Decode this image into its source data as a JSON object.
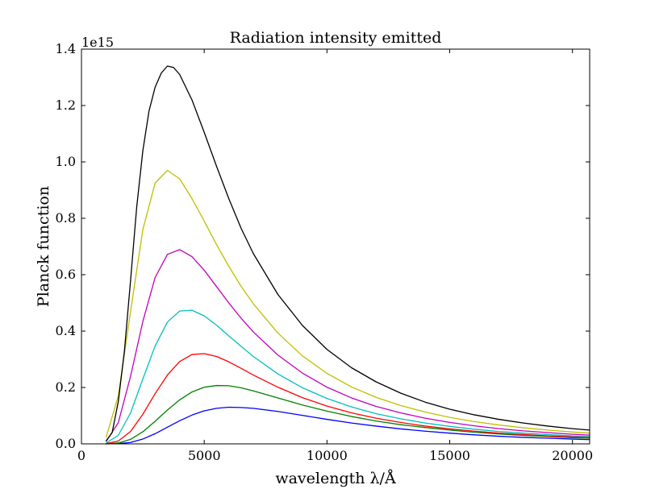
{
  "chart_data": {
    "type": "line",
    "title": "Radiation intensity emitted",
    "xlabel": "wavelength λ/Å",
    "ylabel": "Planck function",
    "y_offset_label": "1e15",
    "xlim": [
      0,
      20700
    ],
    "ylim": [
      0,
      1.4
    ],
    "x_ticks": [
      0,
      5000,
      10000,
      15000,
      20000
    ],
    "x_tick_labels": [
      "0",
      "5000",
      "10000",
      "15000",
      "20000"
    ],
    "y_ticks": [
      0.0,
      0.2,
      0.4,
      0.6,
      0.8,
      1.0,
      1.2,
      1.4
    ],
    "y_tick_labels": [
      "0.0",
      "0.2",
      "0.4",
      "0.6",
      "0.8",
      "1.0",
      "1.2",
      "1.4"
    ],
    "grid": false,
    "series": [
      {
        "color": "#0000ff",
        "values": [
          [
            1000,
            0.0
          ],
          [
            1500,
            0.001
          ],
          [
            2000,
            0.005
          ],
          [
            2500,
            0.017
          ],
          [
            3000,
            0.036
          ],
          [
            3500,
            0.059
          ],
          [
            4000,
            0.082
          ],
          [
            4500,
            0.102
          ],
          [
            5000,
            0.117
          ],
          [
            5500,
            0.126
          ],
          [
            6000,
            0.13
          ],
          [
            6500,
            0.129
          ],
          [
            7000,
            0.126
          ],
          [
            8000,
            0.115
          ],
          [
            9000,
            0.101
          ],
          [
            10000,
            0.087
          ],
          [
            11000,
            0.074
          ],
          [
            12000,
            0.063
          ],
          [
            13000,
            0.053
          ],
          [
            14000,
            0.045
          ],
          [
            15000,
            0.038
          ],
          [
            16000,
            0.032
          ],
          [
            17000,
            0.027
          ],
          [
            18000,
            0.023
          ],
          [
            19000,
            0.02
          ],
          [
            20000,
            0.017
          ],
          [
            20700,
            0.015
          ]
        ]
      },
      {
        "color": "#008000",
        "values": [
          [
            1000,
            0.0
          ],
          [
            1500,
            0.003
          ],
          [
            2000,
            0.016
          ],
          [
            2500,
            0.043
          ],
          [
            3000,
            0.08
          ],
          [
            3500,
            0.12
          ],
          [
            4000,
            0.156
          ],
          [
            4500,
            0.184
          ],
          [
            5000,
            0.201
          ],
          [
            5500,
            0.207
          ],
          [
            6000,
            0.206
          ],
          [
            6500,
            0.199
          ],
          [
            7000,
            0.188
          ],
          [
            8000,
            0.163
          ],
          [
            9000,
            0.138
          ],
          [
            10000,
            0.116
          ],
          [
            11000,
            0.097
          ],
          [
            12000,
            0.081
          ],
          [
            13000,
            0.068
          ],
          [
            14000,
            0.058
          ],
          [
            15000,
            0.049
          ],
          [
            16000,
            0.041
          ],
          [
            17000,
            0.035
          ],
          [
            18000,
            0.03
          ],
          [
            19000,
            0.026
          ],
          [
            20000,
            0.022
          ],
          [
            20700,
            0.02
          ]
        ]
      },
      {
        "color": "#ff0000",
        "values": [
          [
            1000,
            0.001
          ],
          [
            1500,
            0.01
          ],
          [
            2000,
            0.044
          ],
          [
            2500,
            0.105
          ],
          [
            3000,
            0.178
          ],
          [
            3500,
            0.244
          ],
          [
            4000,
            0.292
          ],
          [
            4500,
            0.317
          ],
          [
            5000,
            0.32
          ],
          [
            5500,
            0.31
          ],
          [
            6000,
            0.291
          ],
          [
            6500,
            0.268
          ],
          [
            7000,
            0.244
          ],
          [
            8000,
            0.201
          ],
          [
            9000,
            0.164
          ],
          [
            10000,
            0.134
          ],
          [
            11000,
            0.11
          ],
          [
            12000,
            0.091
          ],
          [
            13000,
            0.076
          ],
          [
            14000,
            0.063
          ],
          [
            15000,
            0.053
          ],
          [
            16000,
            0.045
          ],
          [
            17000,
            0.038
          ],
          [
            18000,
            0.033
          ],
          [
            19000,
            0.028
          ],
          [
            20000,
            0.025
          ],
          [
            20700,
            0.022
          ]
        ]
      },
      {
        "color": "#00bfbf",
        "values": [
          [
            1000,
            0.003
          ],
          [
            1500,
            0.03
          ],
          [
            2000,
            0.11
          ],
          [
            2500,
            0.23
          ],
          [
            3000,
            0.347
          ],
          [
            3500,
            0.432
          ],
          [
            4000,
            0.471
          ],
          [
            4500,
            0.474
          ],
          [
            5000,
            0.454
          ],
          [
            5500,
            0.421
          ],
          [
            6000,
            0.383
          ],
          [
            6500,
            0.346
          ],
          [
            7000,
            0.31
          ],
          [
            8000,
            0.248
          ],
          [
            9000,
            0.199
          ],
          [
            10000,
            0.161
          ],
          [
            11000,
            0.131
          ],
          [
            12000,
            0.107
          ],
          [
            13000,
            0.089
          ],
          [
            14000,
            0.074
          ],
          [
            15000,
            0.062
          ],
          [
            16000,
            0.052
          ],
          [
            17000,
            0.044
          ],
          [
            18000,
            0.038
          ],
          [
            19000,
            0.033
          ],
          [
            20000,
            0.028
          ],
          [
            20700,
            0.026
          ]
        ]
      },
      {
        "color": "#bf00bf",
        "values": [
          [
            1000,
            0.008
          ],
          [
            1500,
            0.075
          ],
          [
            2000,
            0.24
          ],
          [
            2500,
            0.434
          ],
          [
            3000,
            0.59
          ],
          [
            3500,
            0.672
          ],
          [
            4000,
            0.689
          ],
          [
            4500,
            0.664
          ],
          [
            5000,
            0.616
          ],
          [
            5500,
            0.558
          ],
          [
            6000,
            0.5
          ],
          [
            6500,
            0.446
          ],
          [
            7000,
            0.397
          ],
          [
            8000,
            0.315
          ],
          [
            9000,
            0.251
          ],
          [
            10000,
            0.201
          ],
          [
            11000,
            0.163
          ],
          [
            12000,
            0.133
          ],
          [
            13000,
            0.11
          ],
          [
            14000,
            0.091
          ],
          [
            15000,
            0.076
          ],
          [
            16000,
            0.064
          ],
          [
            17000,
            0.054
          ],
          [
            18000,
            0.046
          ],
          [
            19000,
            0.04
          ],
          [
            20000,
            0.034
          ],
          [
            20700,
            0.031
          ]
        ]
      },
      {
        "color": "#bfbf00",
        "values": [
          [
            1000,
            0.022
          ],
          [
            1500,
            0.17
          ],
          [
            2000,
            0.47
          ],
          [
            2500,
            0.76
          ],
          [
            3000,
            0.925
          ],
          [
            3500,
            0.97
          ],
          [
            4000,
            0.94
          ],
          [
            4500,
            0.87
          ],
          [
            5000,
            0.79
          ],
          [
            5500,
            0.707
          ],
          [
            6000,
            0.63
          ],
          [
            6500,
            0.559
          ],
          [
            7000,
            0.497
          ],
          [
            8000,
            0.393
          ],
          [
            9000,
            0.312
          ],
          [
            10000,
            0.25
          ],
          [
            11000,
            0.202
          ],
          [
            12000,
            0.165
          ],
          [
            13000,
            0.136
          ],
          [
            14000,
            0.113
          ],
          [
            15000,
            0.094
          ],
          [
            16000,
            0.079
          ],
          [
            17000,
            0.067
          ],
          [
            18000,
            0.057
          ],
          [
            19000,
            0.049
          ],
          [
            20000,
            0.042
          ],
          [
            20700,
            0.038
          ]
        ]
      },
      {
        "color": "#000000",
        "values": [
          [
            1000,
            0.01
          ],
          [
            1250,
            0.04
          ],
          [
            1500,
            0.15
          ],
          [
            1750,
            0.33
          ],
          [
            2000,
            0.58
          ],
          [
            2250,
            0.84
          ],
          [
            2500,
            1.04
          ],
          [
            2750,
            1.18
          ],
          [
            3000,
            1.265
          ],
          [
            3250,
            1.315
          ],
          [
            3500,
            1.34
          ],
          [
            3750,
            1.335
          ],
          [
            4000,
            1.31
          ],
          [
            4500,
            1.22
          ],
          [
            5000,
            1.105
          ],
          [
            5500,
            0.985
          ],
          [
            6000,
            0.87
          ],
          [
            6500,
            0.765
          ],
          [
            7000,
            0.675
          ],
          [
            8000,
            0.53
          ],
          [
            9000,
            0.42
          ],
          [
            10000,
            0.335
          ],
          [
            11000,
            0.27
          ],
          [
            12000,
            0.22
          ],
          [
            13000,
            0.18
          ],
          [
            14000,
            0.148
          ],
          [
            15000,
            0.123
          ],
          [
            16000,
            0.103
          ],
          [
            17000,
            0.087
          ],
          [
            18000,
            0.074
          ],
          [
            19000,
            0.063
          ],
          [
            20000,
            0.054
          ],
          [
            20700,
            0.049
          ]
        ]
      }
    ]
  }
}
